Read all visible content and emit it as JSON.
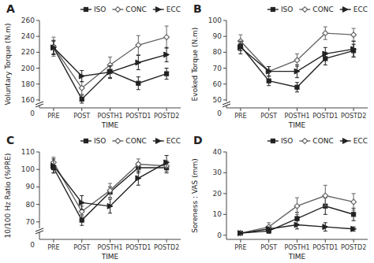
{
  "chart_data": [
    {
      "type": "line",
      "title": "A",
      "x_label": "TIME",
      "y_label": "Voluntary Torque (N.m)",
      "categories": [
        "PRE",
        "POST",
        "POSTH1",
        "POSTD1",
        "POSTD2"
      ],
      "series": [
        {
          "name": "ISO",
          "color": "#222222",
          "marker": "square",
          "values": [
            226,
            161,
            196,
            181,
            193
          ],
          "errors": [
            8,
            5,
            8,
            8,
            7
          ]
        },
        {
          "name": "CONC",
          "color": "#666666",
          "marker": "diamond",
          "values": [
            227,
            175,
            204,
            229,
            239
          ],
          "errors": [
            12,
            8,
            10,
            12,
            14
          ]
        },
        {
          "name": "ECC",
          "color": "#222222",
          "marker": "triangle-right",
          "values": [
            226,
            190,
            195,
            207,
            217
          ],
          "errors": [
            9,
            7,
            8,
            9,
            9
          ]
        }
      ],
      "ylim": [
        150,
        260
      ],
      "yticks": [
        160,
        180,
        200,
        220,
        240,
        260
      ],
      "annotations": [
        {
          "text": "0",
          "y": 150
        }
      ],
      "grid": false,
      "legend": "upper right"
    },
    {
      "type": "line",
      "title": "B",
      "x_label": "TIME",
      "y_label": "Evoked Torque (N.m)",
      "categories": [
        "PRE",
        "POST",
        "POSTH1",
        "POSTD1",
        "POSTD2"
      ],
      "series": [
        {
          "name": "ISO",
          "color": "#222222",
          "marker": "square",
          "values": [
            84,
            62,
            58,
            76,
            81
          ],
          "errors": [
            3,
            3,
            3,
            4,
            4
          ]
        },
        {
          "name": "CONC",
          "color": "#666666",
          "marker": "diamond",
          "values": [
            87,
            68,
            75,
            92,
            91
          ],
          "errors": [
            4,
            3,
            4,
            4,
            4
          ]
        },
        {
          "name": "ECC",
          "color": "#222222",
          "marker": "triangle-right",
          "values": [
            83,
            68,
            68,
            79,
            82
          ],
          "errors": [
            4,
            3,
            4,
            4,
            5
          ]
        }
      ],
      "ylim": [
        45,
        100
      ],
      "yticks": [
        50,
        60,
        70,
        80,
        90,
        100
      ],
      "annotations": [
        {
          "text": "0",
          "y": 45
        }
      ],
      "grid": false,
      "legend": "upper right"
    },
    {
      "type": "line",
      "title": "C",
      "x_label": "TIME",
      "y_label": "10/100 Hz Ratio (%PRE)",
      "categories": [
        "PRE",
        "POST",
        "POSTH1",
        "POSTD1",
        "POSTD2"
      ],
      "series": [
        {
          "name": "ISO",
          "color": "#222222",
          "marker": "square",
          "values": [
            101,
            71,
            87,
            101,
            101
          ],
          "errors": [
            3,
            3,
            3,
            3,
            3
          ]
        },
        {
          "name": "CONC",
          "color": "#666666",
          "marker": "diamond",
          "values": [
            104,
            76,
            88,
            103,
            102
          ],
          "errors": [
            3,
            3,
            4,
            3,
            3
          ]
        },
        {
          "name": "ECC",
          "color": "#222222",
          "marker": "triangle-right",
          "values": [
            102,
            81,
            79,
            95,
            104
          ],
          "errors": [
            4,
            4,
            4,
            4,
            4
          ]
        }
      ],
      "ylim": [
        60,
        110
      ],
      "yticks": [
        70,
        80,
        90,
        100,
        110
      ],
      "annotations": [
        {
          "text": "0",
          "y": 60
        }
      ],
      "grid": false,
      "legend": "upper right"
    },
    {
      "type": "line",
      "title": "D",
      "x_label": "TIME",
      "y_label": "Soreness : VAS (mm)",
      "categories": [
        "PRE",
        "POST",
        "POSTH1",
        "POSTD1",
        "POSTD2"
      ],
      "series": [
        {
          "name": "ISO",
          "color": "#222222",
          "marker": "square",
          "values": [
            1,
            2,
            8,
            14,
            10
          ],
          "errors": [
            0.5,
            1,
            3,
            4,
            3
          ]
        },
        {
          "name": "CONC",
          "color": "#666666",
          "marker": "diamond",
          "values": [
            1,
            4,
            14,
            19,
            16
          ],
          "errors": [
            0.5,
            2,
            4,
            5,
            4
          ]
        },
        {
          "name": "ECC",
          "color": "#222222",
          "marker": "triangle-right",
          "values": [
            1,
            3,
            5,
            4,
            3
          ],
          "errors": [
            0.5,
            1,
            2,
            2,
            1
          ]
        }
      ],
      "ylim": [
        -2,
        40
      ],
      "yticks": [
        0,
        10,
        20,
        30,
        40
      ],
      "grid": false,
      "legend": "upper right"
    }
  ]
}
